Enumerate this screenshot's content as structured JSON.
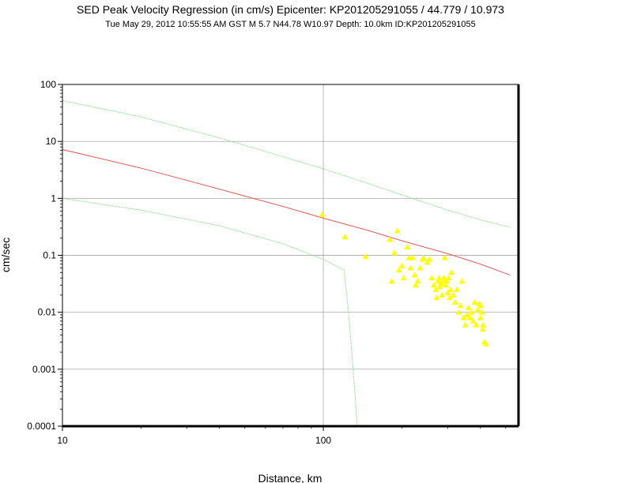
{
  "header": {
    "title": "SED Peak Velocity Regression (in cm/s) Epicenter: KP201205291055 / 44.779 / 10.973",
    "subtitle": "Tue May 29, 2012 10:55:55 AM GST    M 5.7    N44.78 W10.97   Depth: 10.0km   ID:KP201205291055"
  },
  "chart_data": {
    "type": "scatter",
    "xlabel": "Distance, km",
    "ylabel": "cm/sec",
    "xscale": "log",
    "yscale": "log",
    "xlim": [
      10,
      560
    ],
    "ylim": [
      0.0001,
      100
    ],
    "x_ticks": [
      "10",
      "100"
    ],
    "y_ticks": [
      "0.0001",
      "0.001",
      "0.01",
      "0.1",
      "1",
      "10",
      "100"
    ],
    "grid": true,
    "colors": {
      "points": "#ffff00",
      "regression": "#ee4444",
      "bounds": "#88dd88",
      "grid": "#999999",
      "frame": "#000000"
    },
    "regression_line": {
      "x": [
        10,
        20,
        40,
        70,
        100,
        150,
        200,
        300,
        400,
        520
      ],
      "y": [
        7.2,
        3.4,
        1.45,
        0.72,
        0.45,
        0.27,
        0.18,
        0.107,
        0.07,
        0.045
      ]
    },
    "upper_bound": {
      "x": [
        10,
        20,
        40,
        70,
        100,
        150,
        200,
        300,
        400,
        520
      ],
      "y": [
        52,
        27,
        11.5,
        5.4,
        3.3,
        1.8,
        1.15,
        0.62,
        0.42,
        0.31
      ]
    },
    "lower_bound": {
      "x": [
        10,
        20,
        40,
        70,
        100,
        120,
        125,
        130,
        135
      ],
      "y": [
        1.0,
        0.62,
        0.33,
        0.16,
        0.085,
        0.055,
        0.01,
        0.001,
        0.0001
      ]
    },
    "series": [
      {
        "x": [
          99,
          121,
          145,
          180,
          183,
          187,
          192,
          195,
          200,
          203,
          210,
          213,
          216,
          220,
          224,
          226,
          230,
          235,
          240,
          242,
          250,
          255,
          260,
          265,
          270,
          272,
          275,
          278,
          280,
          282,
          285,
          288,
          290,
          292,
          295,
          297,
          300,
          302,
          305,
          307,
          310,
          315,
          320,
          325,
          330,
          335,
          340,
          345,
          350,
          355,
          360,
          365,
          370,
          375,
          380,
          385,
          390,
          395,
          400,
          402,
          405,
          408,
          410,
          415,
          420
        ],
        "y": [
          0.52,
          0.21,
          0.095,
          0.19,
          0.035,
          0.11,
          0.27,
          0.055,
          0.065,
          0.04,
          0.14,
          0.09,
          0.06,
          0.09,
          0.045,
          0.03,
          0.035,
          0.06,
          0.085,
          0.09,
          0.075,
          0.085,
          0.04,
          0.03,
          0.025,
          0.018,
          0.035,
          0.04,
          0.028,
          0.032,
          0.02,
          0.035,
          0.04,
          0.09,
          0.03,
          0.035,
          0.022,
          0.04,
          0.018,
          0.025,
          0.05,
          0.02,
          0.015,
          0.025,
          0.01,
          0.013,
          0.035,
          0.008,
          0.006,
          0.009,
          0.012,
          0.008,
          0.01,
          0.007,
          0.015,
          0.006,
          0.011,
          0.014,
          0.008,
          0.013,
          0.01,
          0.005,
          0.006,
          0.003,
          0.0028
        ]
      }
    ]
  }
}
